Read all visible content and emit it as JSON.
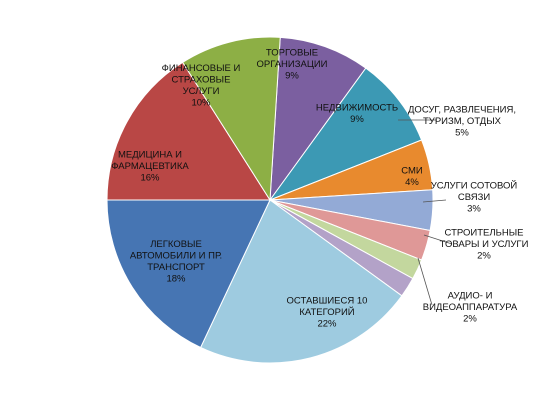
{
  "chart_data": {
    "type": "pie",
    "title": "",
    "slices": [
      {
        "label": [
          "ТОРГОВЫЕ",
          "ОРГАНИЗАЦИИ"
        ],
        "pct_label": "9%",
        "value": 9,
        "color": "#7b5fa0"
      },
      {
        "label": [
          "НЕДВИЖИМОСТЬ"
        ],
        "pct_label": "9%",
        "value": 9,
        "color": "#3c99b4"
      },
      {
        "label": [
          "ДОСУГ, РАЗВЛЕЧЕНИЯ,",
          "ТУРИЗМ, ОТДЫХ"
        ],
        "pct_label": "5%",
        "value": 5,
        "color": "#e88a2e"
      },
      {
        "label": [
          "СМИ"
        ],
        "pct_label": "4%",
        "value": 4,
        "color": "#93aad6"
      },
      {
        "label": [
          "УСЛУГИ СОТОВОЙ",
          "СВЯЗИ"
        ],
        "pct_label": "3%",
        "value": 3,
        "color": "#df9897"
      },
      {
        "label": [
          "СТРОИТЕЛЬНЫЕ",
          "ТОВАРЫ И УСЛУГИ"
        ],
        "pct_label": "2%",
        "value": 2,
        "color": "#c3d79e"
      },
      {
        "label": [
          "АУДИО- И",
          "ВИДЕОАППАРАТУРА"
        ],
        "pct_label": "2%",
        "value": 2,
        "color": "#b3a2c8"
      },
      {
        "label": [
          "ОСТАВШИЕСЯ 10",
          "КАТЕГОРИЙ"
        ],
        "pct_label": "22%",
        "value": 22,
        "color": "#9ecbe0"
      },
      {
        "label": [
          "ЛЕГКОВЫЕ",
          "АВТОМОБИЛИ И ПР.",
          "ТРАНСПОРТ"
        ],
        "pct_label": "18%",
        "value": 18,
        "color": "#4675b3"
      },
      {
        "label": [
          "МЕДИЦИНА И",
          "ФАРМАЦЕВТИКА"
        ],
        "pct_label": "16%",
        "value": 16,
        "color": "#b94745"
      },
      {
        "label": [
          "ФИНАНСОВЫЕ И",
          "СТРАХОВЫЕ",
          "УСЛУГИ"
        ],
        "pct_label": "10%",
        "value": 10,
        "color": "#8daf45"
      }
    ]
  }
}
